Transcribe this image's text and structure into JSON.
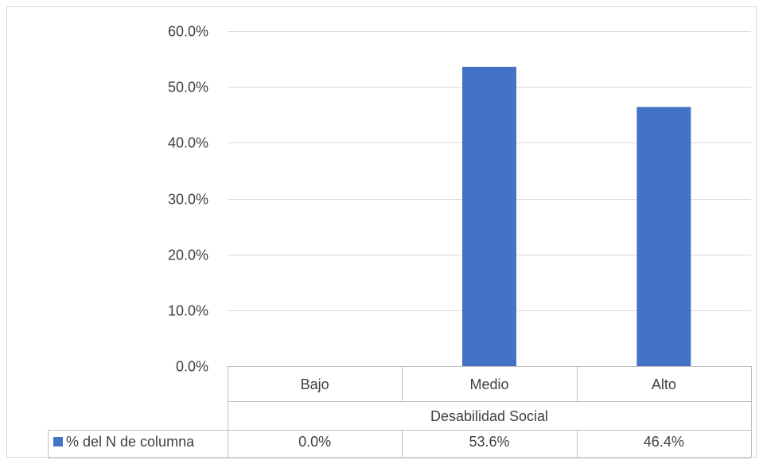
{
  "chart_data": {
    "type": "bar",
    "categories": [
      "Bajo",
      "Medio",
      "Alto"
    ],
    "category_group_label": "Desabilidad Social",
    "series": [
      {
        "name": "% del N de columna",
        "values": [
          0.0,
          53.6,
          46.4
        ],
        "value_labels": [
          "0.0%",
          "53.6%",
          "46.4%"
        ],
        "color": "#4472C4"
      }
    ],
    "ylim": [
      0,
      60
    ],
    "yticks": [
      0,
      10,
      20,
      30,
      40,
      50,
      60
    ],
    "ytick_labels": [
      "0.0%",
      "10.0%",
      "20.0%",
      "30.0%",
      "40.0%",
      "50.0%",
      "60.0%"
    ],
    "grid": true,
    "legend": "data-table",
    "colors": {
      "bar": "#4472C4",
      "grid": "#D9D9D9",
      "table_border": "#BFBFBF",
      "text": "#404040"
    }
  }
}
